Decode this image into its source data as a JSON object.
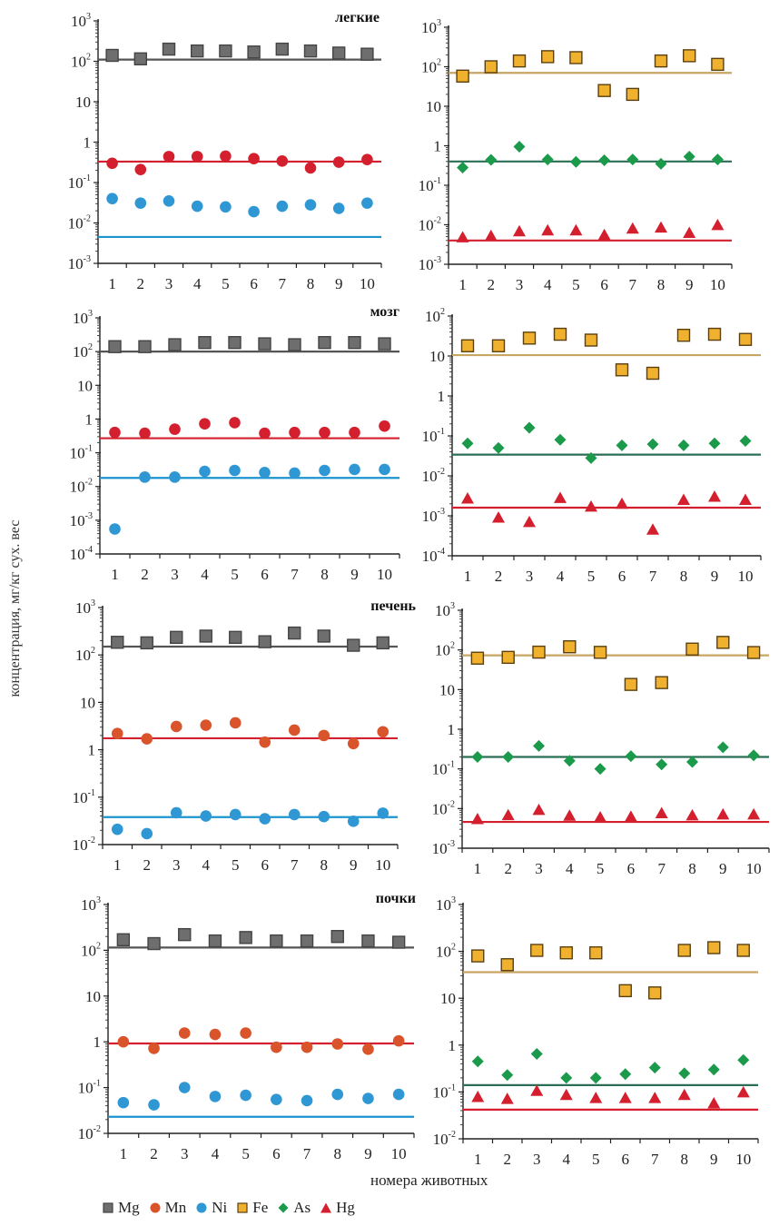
{
  "figure": {
    "ylabel": "концентрация, мг/кг сух. вес",
    "xlabel": "номера животных"
  },
  "legend": [
    {
      "label": "Mg",
      "marker": "square",
      "color": "#6e6e6e",
      "stroke": "#444444"
    },
    {
      "label": "Mn",
      "marker": "circle",
      "color": "#d9532b"
    },
    {
      "label": "Ni",
      "marker": "circle",
      "color": "#2f97d3"
    },
    {
      "label": "Fe",
      "marker": "square",
      "color": "#f0b12e",
      "stroke": "#5a4010"
    },
    {
      "label": "As",
      "marker": "diamond",
      "color": "#1a9a4a"
    },
    {
      "label": "Hg",
      "marker": "triangle",
      "color": "#d4202e"
    }
  ],
  "chart_data": [
    {
      "type": "scatter",
      "panel": "lungs-left",
      "title": "легкие",
      "x": [
        1,
        2,
        3,
        4,
        5,
        6,
        7,
        8,
        9,
        10
      ],
      "ylim": [
        0.001,
        1000
      ],
      "yscale": "log",
      "yticks": [
        "10³",
        "10²",
        "10",
        "1",
        "10⁻¹",
        "10⁻²",
        "10⁻³"
      ],
      "series": [
        {
          "name": "Mg",
          "values": [
            140,
            115,
            200,
            180,
            180,
            170,
            200,
            180,
            160,
            150
          ],
          "reference": 110
        },
        {
          "name": "Mn",
          "values": [
            0.3,
            0.21,
            0.44,
            0.44,
            0.45,
            0.39,
            0.34,
            0.23,
            0.32,
            0.37
          ],
          "reference": 0.33,
          "marker_color": "#d4202e",
          "line_color": "#d4202e"
        },
        {
          "name": "Ni",
          "values": [
            0.04,
            0.031,
            0.035,
            0.026,
            0.025,
            0.019,
            0.026,
            0.028,
            0.023,
            0.031
          ],
          "reference": 0.0045
        }
      ]
    },
    {
      "type": "scatter",
      "panel": "lungs-right",
      "title": "",
      "x": [
        1,
        2,
        3,
        4,
        5,
        6,
        7,
        8,
        9,
        10
      ],
      "ylim": [
        0.001,
        1000
      ],
      "yscale": "log",
      "yticks": [
        "10³",
        "10²",
        "10",
        "1",
        "10⁻¹",
        "10⁻²",
        "10⁻³"
      ],
      "series": [
        {
          "name": "Fe",
          "values": [
            58,
            100,
            140,
            180,
            170,
            25,
            20,
            140,
            190,
            115
          ],
          "reference": 70
        },
        {
          "name": "As",
          "values": [
            0.28,
            0.44,
            0.95,
            0.45,
            0.39,
            0.43,
            0.45,
            0.35,
            0.53,
            0.45
          ],
          "reference": 0.4
        },
        {
          "name": "Hg",
          "values": [
            0.0048,
            0.0052,
            0.0068,
            0.0072,
            0.0072,
            0.0055,
            0.008,
            0.0085,
            0.0062,
            0.0098
          ],
          "reference": 0.004
        }
      ]
    },
    {
      "type": "scatter",
      "panel": "brain-left",
      "title": "мозг",
      "x": [
        1,
        2,
        3,
        4,
        5,
        6,
        7,
        8,
        9,
        10
      ],
      "ylim": [
        0.0001,
        1000
      ],
      "yscale": "log",
      "yticks": [
        "10³",
        "10²",
        "10",
        "1",
        "10⁻¹",
        "10⁻²",
        "10⁻³",
        "10⁻⁴"
      ],
      "series": [
        {
          "name": "Mg",
          "values": [
            140,
            140,
            160,
            185,
            185,
            170,
            160,
            185,
            185,
            170
          ],
          "reference": 100
        },
        {
          "name": "Mn",
          "values": [
            0.4,
            0.38,
            0.5,
            0.72,
            0.78,
            0.38,
            0.4,
            0.4,
            0.4,
            0.62
          ],
          "reference": 0.27,
          "marker_color": "#d4202e",
          "line_color": "#d4202e"
        },
        {
          "name": "Ni",
          "values": [
            0.00055,
            0.019,
            0.019,
            0.028,
            0.03,
            0.026,
            0.025,
            0.03,
            0.032,
            0.032
          ],
          "reference": 0.018
        }
      ]
    },
    {
      "type": "scatter",
      "panel": "brain-right",
      "title": "",
      "x": [
        1,
        2,
        3,
        4,
        5,
        6,
        7,
        8,
        9,
        10
      ],
      "ylim": [
        0.0001,
        100
      ],
      "yscale": "log",
      "yticks": [
        "10²",
        "10",
        "1",
        "10⁻¹",
        "10⁻²",
        "10⁻³",
        "10⁻⁴"
      ],
      "series": [
        {
          "name": "Fe",
          "values": [
            18,
            18,
            28,
            35,
            25,
            4.5,
            3.7,
            33,
            35,
            26
          ],
          "reference": 10.5
        },
        {
          "name": "As",
          "values": [
            0.065,
            0.05,
            0.16,
            0.08,
            0.028,
            0.058,
            0.062,
            0.058,
            0.065,
            0.075
          ],
          "reference": 0.034
        },
        {
          "name": "Hg",
          "values": [
            0.0027,
            0.0009,
            0.0007,
            0.0028,
            0.0017,
            0.002,
            0.00045,
            0.0025,
            0.003,
            0.0025
          ],
          "reference": 0.0016
        }
      ]
    },
    {
      "type": "scatter",
      "panel": "liver-left",
      "title": "печень",
      "x": [
        1,
        2,
        3,
        4,
        5,
        6,
        7,
        8,
        9,
        10
      ],
      "ylim": [
        0.01,
        1000
      ],
      "yscale": "log",
      "yticks": [
        "10³",
        "10²",
        "10",
        "1",
        "10⁻¹",
        "10⁻²"
      ],
      "series": [
        {
          "name": "Mg",
          "values": [
            185,
            180,
            235,
            250,
            235,
            190,
            290,
            250,
            160,
            180
          ],
          "reference": 150
        },
        {
          "name": "Mn",
          "values": [
            2.2,
            1.7,
            3.1,
            3.3,
            3.7,
            1.45,
            2.6,
            2.0,
            1.35,
            2.4
          ],
          "reference": 1.75,
          "line_color": "#d4202e"
        },
        {
          "name": "Ni",
          "values": [
            0.021,
            0.017,
            0.047,
            0.04,
            0.043,
            0.035,
            0.043,
            0.039,
            0.031,
            0.046
          ],
          "reference": 0.038
        }
      ]
    },
    {
      "type": "scatter",
      "panel": "liver-right",
      "title": "",
      "x": [
        1,
        2,
        3,
        4,
        5,
        6,
        7,
        8,
        9,
        10
      ],
      "ylim": [
        0.001,
        1000
      ],
      "yscale": "log",
      "yticks": [
        "10³",
        "10²",
        "10",
        "1",
        "10⁻¹",
        "10⁻²",
        "10⁻³"
      ],
      "series": [
        {
          "name": "Fe",
          "values": [
            62,
            65,
            88,
            120,
            87,
            13.5,
            15,
            105,
            155,
            86
          ],
          "reference": 73
        },
        {
          "name": "As",
          "values": [
            0.2,
            0.2,
            0.38,
            0.16,
            0.1,
            0.21,
            0.13,
            0.15,
            0.35,
            0.22
          ],
          "reference": 0.2
        },
        {
          "name": "Hg",
          "values": [
            0.0054,
            0.0068,
            0.0092,
            0.0066,
            0.006,
            0.0062,
            0.0076,
            0.0067,
            0.0071,
            0.0071
          ],
          "reference": 0.0046
        }
      ]
    },
    {
      "type": "scatter",
      "panel": "kidneys-left",
      "title": "почки",
      "x": [
        1,
        2,
        3,
        4,
        5,
        6,
        7,
        8,
        9,
        10
      ],
      "ylim": [
        0.01,
        1000
      ],
      "yscale": "log",
      "yticks": [
        "10³",
        "10²",
        "10",
        "1",
        "10⁻¹",
        "10⁻²"
      ],
      "series": [
        {
          "name": "Mg",
          "values": [
            170,
            140,
            220,
            160,
            190,
            160,
            160,
            200,
            160,
            150
          ],
          "reference": 115
        },
        {
          "name": "Mn",
          "values": [
            1.0,
            0.72,
            1.55,
            1.45,
            1.55,
            0.76,
            0.76,
            0.9,
            0.69,
            1.05
          ],
          "reference": 0.92,
          "line_color": "#d4202e"
        },
        {
          "name": "Ni",
          "values": [
            0.047,
            0.042,
            0.1,
            0.064,
            0.068,
            0.055,
            0.052,
            0.071,
            0.058,
            0.071
          ],
          "reference": 0.023
        }
      ]
    },
    {
      "type": "scatter",
      "panel": "kidneys-right",
      "title": "",
      "x": [
        1,
        2,
        3,
        4,
        5,
        6,
        7,
        8,
        9,
        10
      ],
      "ylim": [
        0.01,
        1000
      ],
      "yscale": "log",
      "yticks": [
        "10³",
        "10²",
        "10",
        "1",
        "10⁻¹",
        "10⁻²"
      ],
      "series": [
        {
          "name": "Fe",
          "values": [
            80,
            52,
            105,
            93,
            93,
            14.5,
            13,
            105,
            120,
            105
          ],
          "reference": 36
        },
        {
          "name": "As",
          "values": [
            0.45,
            0.23,
            0.65,
            0.2,
            0.2,
            0.24,
            0.33,
            0.25,
            0.3,
            0.48
          ],
          "reference": 0.14
        },
        {
          "name": "Hg",
          "values": [
            0.078,
            0.071,
            0.105,
            0.086,
            0.074,
            0.074,
            0.074,
            0.086,
            0.057,
            0.098
          ],
          "reference": 0.042
        }
      ]
    }
  ]
}
